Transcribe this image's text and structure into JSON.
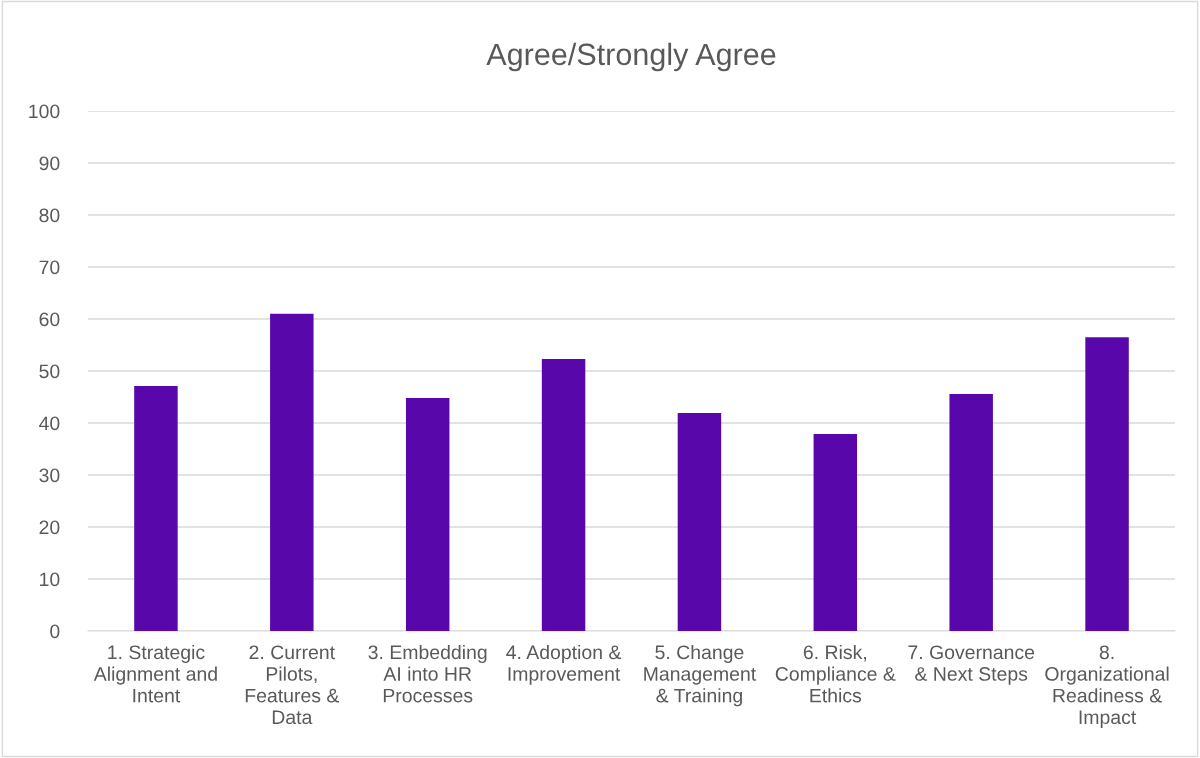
{
  "chart_data": {
    "type": "bar",
    "title": "Agree/Strongly Agree",
    "categories": [
      "1. Strategic Alignment and Intent",
      "2. Current Pilots, Features & Data",
      "3. Embedding AI into HR Processes",
      "4. Adoption & Improvement",
      "5. Change Management & Training",
      "6. Risk, Compliance & Ethics",
      "7. Governance & Next Steps",
      "8. Organizational Readiness & Impact"
    ],
    "values": [
      47.1,
      61.0,
      44.8,
      52.3,
      41.9,
      37.9,
      45.6,
      56.5
    ],
    "color": "#5808aa",
    "ylim": [
      0,
      100
    ],
    "yticks": [
      0,
      10,
      20,
      30,
      40,
      50,
      60,
      70,
      80,
      90,
      100
    ],
    "grid": "y"
  }
}
